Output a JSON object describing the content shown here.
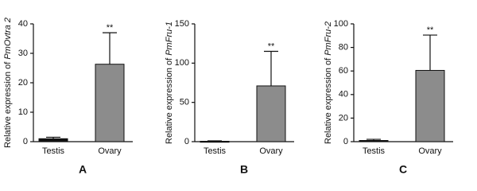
{
  "chart_data": [
    {
      "type": "bar",
      "panel_label": "A",
      "ylabel": "Relative expression of",
      "ylabel_italic": "PmOvtra 2",
      "categories": [
        "Testis",
        "Ovary"
      ],
      "values": [
        1.0,
        26.3
      ],
      "errors": [
        0.5,
        10.7
      ],
      "colors": [
        "#111111",
        "#8c8c8c"
      ],
      "value_annotations": [
        null,
        "**"
      ],
      "ylim": [
        0,
        40
      ],
      "yticks": [
        0,
        10,
        20,
        30,
        40
      ]
    },
    {
      "type": "bar",
      "panel_label": "B",
      "ylabel": "Relative expression of",
      "ylabel_italic": "PmFru-1",
      "categories": [
        "Testis",
        "Ovary"
      ],
      "values": [
        0.5,
        71
      ],
      "errors": [
        0.5,
        44
      ],
      "colors": [
        "#111111",
        "#8c8c8c"
      ],
      "value_annotations": [
        null,
        "**"
      ],
      "ylim": [
        0,
        150
      ],
      "yticks": [
        0,
        50,
        100,
        150
      ]
    },
    {
      "type": "bar",
      "panel_label": "C",
      "ylabel": "Relative expression of",
      "ylabel_italic": "PmFru-2",
      "categories": [
        "Testis",
        "Ovary"
      ],
      "values": [
        1,
        60.5
      ],
      "errors": [
        1,
        30
      ],
      "colors": [
        "#111111",
        "#8c8c8c"
      ],
      "value_annotations": [
        null,
        "**"
      ],
      "ylim": [
        0,
        100
      ],
      "yticks": [
        0,
        20,
        40,
        60,
        80,
        100
      ]
    }
  ]
}
